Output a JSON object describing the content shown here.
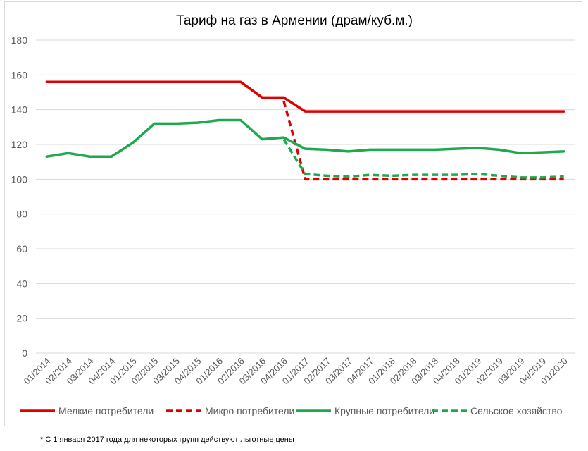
{
  "chart_data": {
    "type": "line",
    "title": "Тариф на газ в Армении (драм/куб.м.)",
    "xlabel": "",
    "ylabel": "",
    "ylim": [
      0,
      180
    ],
    "yticks": [
      0,
      20,
      40,
      60,
      80,
      100,
      120,
      140,
      160,
      180
    ],
    "grid": true,
    "legend_position": "bottom",
    "categories": [
      "01/2014",
      "02/2014",
      "03/2014",
      "04/2014",
      "01/2015",
      "02/2015",
      "03/2015",
      "04/2015",
      "01/2016",
      "02/2016",
      "03/2016",
      "04/2016",
      "01/2017",
      "02/2017",
      "03/2017",
      "04/2017",
      "01/2018",
      "02/2018",
      "03/2018",
      "04/2018",
      "01/2019",
      "02/2019",
      "03/2019",
      "04/2019",
      "01/2020"
    ],
    "series": [
      {
        "name": "Мелкие потребители",
        "color": "#e00000",
        "dash": false,
        "values": [
          156,
          156,
          156,
          156,
          156,
          156,
          156,
          156,
          156,
          156,
          147,
          147,
          139,
          139,
          139,
          139,
          139,
          139,
          139,
          139,
          139,
          139,
          139,
          139,
          139
        ]
      },
      {
        "name": "Микро потребители",
        "color": "#e00000",
        "dash": true,
        "values": [
          null,
          null,
          null,
          null,
          null,
          null,
          null,
          null,
          null,
          null,
          null,
          145,
          100,
          100,
          100,
          100,
          100,
          100,
          100,
          100,
          100,
          100,
          100,
          100,
          100
        ]
      },
      {
        "name": "Крупные потребители",
        "color": "#1daa4f",
        "dash": false,
        "values": [
          113,
          115,
          113,
          113,
          121,
          132,
          132,
          132.5,
          134,
          134,
          123,
          124,
          117.5,
          117,
          116,
          117,
          117,
          117,
          117,
          117.5,
          118,
          117,
          115,
          115.5,
          116
        ]
      },
      {
        "name": "Сельское хозяйство",
        "color": "#1daa4f",
        "dash": true,
        "values": [
          null,
          null,
          null,
          null,
          null,
          null,
          null,
          null,
          null,
          null,
          null,
          123,
          103,
          102,
          101.5,
          102.5,
          102,
          102.5,
          102.5,
          102.5,
          103,
          102,
          101,
          101,
          101.5
        ]
      }
    ]
  },
  "footnote": "* С 1 января 2017 года для некоторых групп действуют льготные цены"
}
